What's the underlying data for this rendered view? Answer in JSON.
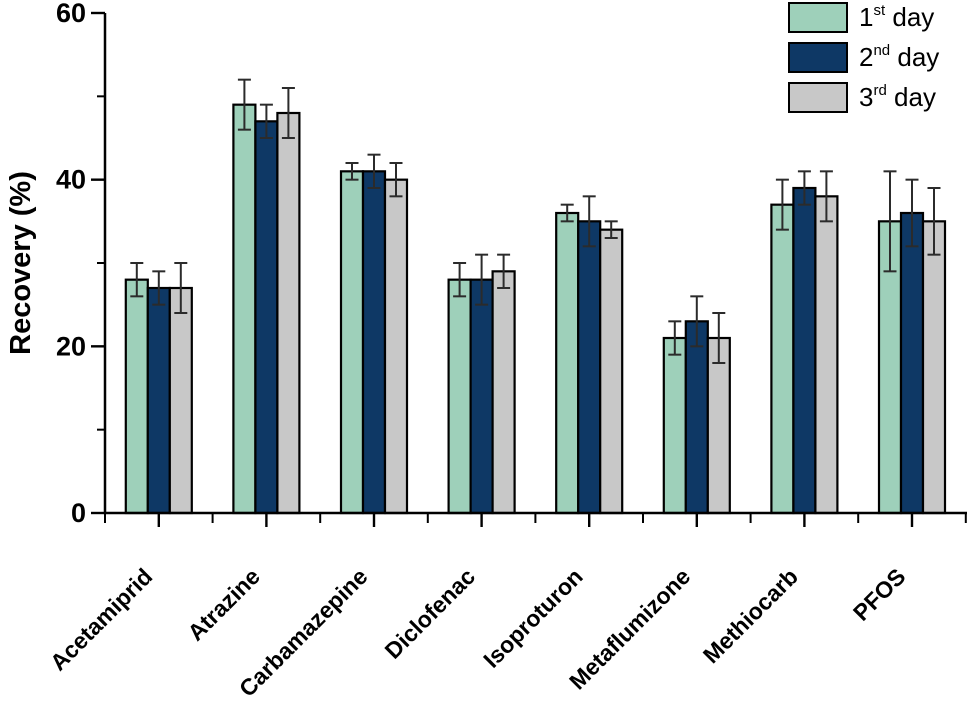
{
  "chart_data": {
    "type": "bar",
    "title": "",
    "xlabel": "",
    "ylabel": "Recovery (%)",
    "ylim": [
      0,
      60
    ],
    "yticks_major": [
      0,
      20,
      40,
      60
    ],
    "yticks_minor": [
      10,
      30,
      50
    ],
    "grid": false,
    "legend_position": "top-right",
    "categories": [
      "Acetamiprid",
      "Atrazine",
      "Carbamazepine",
      "Diclofenac",
      "Isoproturon",
      "Metaflumizone",
      "Methiocarb",
      "PFOS"
    ],
    "series": [
      {
        "name": "1st day",
        "label_parts": {
          "num": "1",
          "sup": "st",
          "rest": " day"
        },
        "color": "#9ed0ba",
        "values": [
          28,
          49,
          41,
          28,
          36,
          21,
          37,
          35
        ],
        "errors": [
          2,
          3,
          1,
          2,
          1,
          2,
          3,
          6
        ]
      },
      {
        "name": "2nd day",
        "label_parts": {
          "num": "2",
          "sup": "nd",
          "rest": " day"
        },
        "color": "#0e3865",
        "values": [
          27,
          47,
          41,
          28,
          35,
          23,
          39,
          36
        ],
        "errors": [
          2,
          2,
          2,
          3,
          3,
          3,
          2,
          4
        ]
      },
      {
        "name": "3rd day",
        "label_parts": {
          "num": "3",
          "sup": "rd",
          "rest": " day"
        },
        "color": "#c8c8c8",
        "values": [
          27,
          48,
          40,
          29,
          34,
          21,
          38,
          35
        ],
        "errors": [
          3,
          3,
          2,
          2,
          1,
          3,
          3,
          4
        ]
      }
    ],
    "colors": {
      "axis": "#000000",
      "bar_border": "#000000",
      "error_bar": "#2b2b2b",
      "background": "#ffffff",
      "text": "#000000"
    }
  }
}
